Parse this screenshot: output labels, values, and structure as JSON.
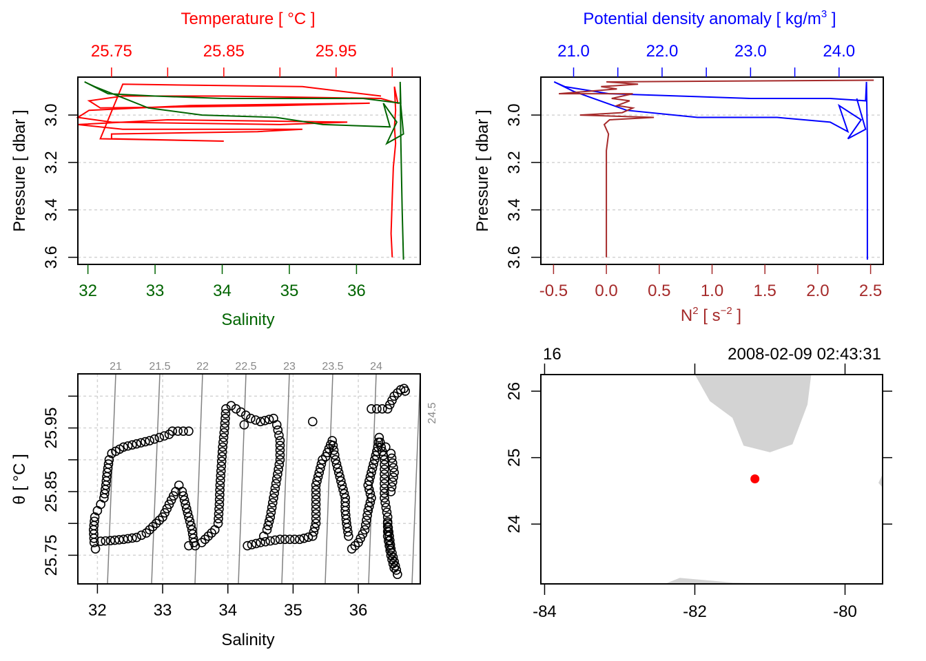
{
  "colors": {
    "temperature": "#ff0000",
    "salinity": "#006400",
    "density": "#0000ff",
    "n2": "#a52a2a",
    "axis": "#000000",
    "grid": "#d3d3d3",
    "isopycnal": "#808080",
    "land": "#d3d3d3",
    "station": "#ff0000"
  },
  "chart_data": [
    {
      "id": "profile-ST",
      "type": "line",
      "title": "Temperature [ °C ]",
      "top_axis": {
        "label": "Temperature [ °C ]",
        "range": [
          25.72,
          26.025
        ],
        "ticks": [
          25.75,
          25.8,
          25.85,
          25.9,
          25.95,
          26.0
        ],
        "tick_labels": [
          "25.75",
          "25.85",
          "25.95"
        ]
      },
      "bottom_axis": {
        "label": "Salinity",
        "range": [
          31.85,
          36.95
        ],
        "ticks": [
          32,
          33,
          34,
          35,
          36
        ],
        "tick_labels": [
          "32",
          "33",
          "34",
          "35",
          "36"
        ]
      },
      "y_axis": {
        "label": "Pressure [ dbar ]",
        "range": [
          3.63,
          2.84
        ],
        "ticks": [
          3.0,
          3.2,
          3.4,
          3.6
        ],
        "tick_labels": [
          "3.0",
          "3.2",
          "3.4",
          "3.6"
        ],
        "reversed": true
      },
      "grid": "horizontal-dashed",
      "series": [
        {
          "name": "Temperature",
          "axis": "top",
          "color": "#ff0000",
          "points": [
            [
              26.0,
              3.6
            ],
            [
              25.999,
              3.5
            ],
            [
              26.0,
              3.35
            ],
            [
              26.001,
              3.22
            ],
            [
              26.003,
              3.12
            ],
            [
              26.002,
              3.05
            ],
            [
              26.003,
              2.98
            ],
            [
              26.002,
              2.88
            ],
            [
              26.005,
              2.95
            ],
            [
              25.99,
              2.93
            ],
            [
              25.85,
              2.92
            ],
            [
              25.76,
              2.92
            ],
            [
              25.73,
              2.94
            ],
            [
              25.74,
              2.97
            ],
            [
              25.9,
              2.96
            ],
            [
              25.98,
              2.95
            ],
            [
              25.82,
              2.96
            ],
            [
              25.73,
              2.98
            ],
            [
              25.72,
              3.01
            ],
            [
              25.75,
              3.03
            ],
            [
              25.9,
              3.04
            ],
            [
              25.96,
              3.03
            ],
            [
              25.8,
              3.02
            ],
            [
              25.72,
              3.04
            ],
            [
              25.76,
              3.06
            ],
            [
              25.92,
              3.06
            ],
            [
              25.88,
              3.07
            ],
            [
              25.75,
              3.08
            ],
            [
              25.75,
              3.1
            ],
            [
              25.85,
              3.11
            ],
            [
              25.74,
              3.1
            ],
            [
              25.76,
              2.87
            ],
            [
              25.92,
              2.88
            ],
            [
              25.99,
              2.92
            ]
          ]
        },
        {
          "name": "Salinity",
          "axis": "bottom",
          "color": "#006400",
          "points": [
            [
              36.7,
              3.61
            ],
            [
              36.68,
              3.4
            ],
            [
              36.66,
              3.1
            ],
            [
              36.65,
              2.86
            ],
            [
              36.66,
              2.95
            ],
            [
              36.1,
              2.93
            ],
            [
              35.5,
              2.93
            ],
            [
              34.0,
              2.93
            ],
            [
              33.0,
              2.92
            ],
            [
              32.3,
              2.91
            ],
            [
              31.95,
              2.86
            ],
            [
              32.1,
              2.88
            ],
            [
              32.9,
              2.97
            ],
            [
              33.7,
              3.0
            ],
            [
              34.8,
              3.01
            ],
            [
              35.5,
              3.04
            ],
            [
              36.5,
              3.05
            ],
            [
              36.4,
              2.95
            ],
            [
              36.6,
              3.03
            ],
            [
              36.45,
              3.12
            ],
            [
              36.7,
              3.08
            ],
            [
              36.65,
              2.93
            ]
          ]
        }
      ]
    },
    {
      "id": "profile-density-N2",
      "type": "line",
      "top_axis": {
        "label": "Potential density anomaly [ kg/m3 ]",
        "range": [
          20.63,
          24.5
        ],
        "ticks": [
          21.0,
          21.5,
          22.0,
          22.5,
          23.0,
          23.5,
          24.0
        ],
        "tick_labels": [
          "21.0",
          "22.0",
          "23.0",
          "24.0"
        ]
      },
      "bottom_axis": {
        "label": "N2 [ s-2 ]",
        "range": [
          -0.62,
          2.62
        ],
        "ticks": [
          -0.5,
          0.0,
          0.5,
          1.0,
          1.5,
          2.0,
          2.5
        ],
        "tick_labels": [
          "-0.5",
          "0.0",
          "0.5",
          "1.0",
          "1.5",
          "2.0",
          "2.5"
        ]
      },
      "y_axis": {
        "label": "Pressure [ dbar ]",
        "range": [
          3.63,
          2.84
        ],
        "ticks": [
          3.0,
          3.2,
          3.4,
          3.6
        ],
        "tick_labels": [
          "3.0",
          "3.2",
          "3.4",
          "3.6"
        ],
        "reversed": true
      },
      "grid": "horizontal-dashed",
      "series": [
        {
          "name": "Potential density anomaly",
          "axis": "top",
          "color": "#0000ff",
          "points": [
            [
              24.32,
              3.61
            ],
            [
              24.32,
              3.4
            ],
            [
              24.32,
              3.1
            ],
            [
              24.31,
              2.86
            ],
            [
              24.3,
              2.94
            ],
            [
              23.9,
              2.93
            ],
            [
              23.0,
              2.93
            ],
            [
              22.2,
              2.92
            ],
            [
              21.4,
              2.91
            ],
            [
              20.9,
              2.88
            ],
            [
              20.78,
              2.86
            ],
            [
              21.0,
              2.9
            ],
            [
              21.6,
              2.98
            ],
            [
              22.4,
              3.01
            ],
            [
              23.3,
              3.01
            ],
            [
              23.9,
              3.03
            ],
            [
              24.1,
              3.07
            ],
            [
              24.0,
              2.96
            ],
            [
              24.25,
              3.02
            ],
            [
              24.1,
              3.1
            ],
            [
              24.3,
              3.06
            ],
            [
              24.2,
              2.93
            ]
          ]
        },
        {
          "name": "N2",
          "axis": "bottom",
          "color": "#a52a2a",
          "points": [
            [
              0.0,
              3.6
            ],
            [
              0.0,
              3.4
            ],
            [
              0.0,
              3.15
            ],
            [
              0.02,
              3.08
            ],
            [
              -0.02,
              3.04
            ],
            [
              0.03,
              3.02
            ],
            [
              0.45,
              3.01
            ],
            [
              -0.25,
              3.0
            ],
            [
              0.15,
              2.99
            ],
            [
              0.25,
              2.97
            ],
            [
              0.1,
              2.96
            ],
            [
              0.22,
              2.94
            ],
            [
              0.05,
              2.93
            ],
            [
              0.25,
              2.91
            ],
            [
              -0.45,
              2.91
            ],
            [
              0.1,
              2.89
            ],
            [
              -0.05,
              2.88
            ],
            [
              0.3,
              2.87
            ],
            [
              0.0,
              2.86
            ],
            [
              2.53,
              2.853
            ]
          ]
        }
      ]
    },
    {
      "id": "TS-diagram",
      "type": "scatter",
      "x_axis": {
        "label": "Salinity",
        "range": [
          31.7,
          36.95
        ],
        "ticks": [
          32,
          33,
          34,
          35,
          36
        ],
        "tick_labels": [
          "32",
          "33",
          "34",
          "35",
          "36"
        ]
      },
      "y_axis": {
        "label": "θ [ °C ]",
        "range": [
          25.705,
          26.035
        ],
        "ticks": [
          25.75,
          25.8,
          25.85,
          25.9,
          25.95,
          26.0
        ],
        "tick_labels": [
          "25.75",
          "25.85",
          "25.95"
        ]
      },
      "grid": "dashed",
      "isopycnals": {
        "labels": [
          "21",
          "21.5",
          "22",
          "22.5",
          "23",
          "23.5",
          "24",
          "24.5"
        ],
        "values": [
          21.0,
          21.5,
          22.0,
          22.5,
          23.0,
          23.5,
          24.0,
          24.5
        ],
        "color": "#808080"
      },
      "points": [
        [
          31.97,
          25.76
        ],
        [
          31.95,
          25.77
        ],
        [
          31.94,
          25.79
        ],
        [
          31.96,
          25.81
        ],
        [
          32.0,
          25.82
        ],
        [
          32.05,
          25.83
        ],
        [
          32.1,
          25.84
        ],
        [
          32.13,
          25.86
        ],
        [
          32.15,
          25.88
        ],
        [
          32.18,
          25.9
        ],
        [
          32.22,
          25.91
        ],
        [
          32.4,
          25.92
        ],
        [
          32.8,
          25.93
        ],
        [
          33.1,
          25.94
        ],
        [
          33.15,
          25.945
        ],
        [
          33.4,
          25.945
        ],
        [
          32.05,
          25.772
        ],
        [
          32.2,
          25.773
        ],
        [
          32.4,
          25.775
        ],
        [
          32.6,
          25.778
        ],
        [
          32.75,
          25.785
        ],
        [
          32.9,
          25.8
        ],
        [
          33.0,
          25.81
        ],
        [
          33.1,
          25.83
        ],
        [
          33.2,
          25.85
        ],
        [
          33.25,
          25.86
        ],
        [
          33.3,
          25.85
        ],
        [
          33.35,
          25.83
        ],
        [
          33.4,
          25.81
        ],
        [
          33.45,
          25.79
        ],
        [
          33.48,
          25.77
        ],
        [
          33.4,
          25.765
        ],
        [
          33.5,
          25.765
        ],
        [
          33.6,
          25.77
        ],
        [
          33.7,
          25.78
        ],
        [
          33.8,
          25.79
        ],
        [
          33.85,
          25.8
        ],
        [
          33.87,
          25.83
        ],
        [
          33.88,
          25.86
        ],
        [
          33.9,
          25.89
        ],
        [
          33.92,
          25.92
        ],
        [
          33.95,
          25.95
        ],
        [
          33.97,
          25.98
        ],
        [
          34.05,
          25.985
        ],
        [
          34.2,
          25.975
        ],
        [
          34.35,
          25.965
        ],
        [
          34.5,
          25.96
        ],
        [
          34.7,
          25.965
        ],
        [
          34.75,
          25.955
        ],
        [
          34.8,
          25.93
        ],
        [
          34.8,
          25.9
        ],
        [
          34.75,
          25.87
        ],
        [
          34.7,
          25.84
        ],
        [
          34.65,
          25.81
        ],
        [
          34.6,
          25.79
        ],
        [
          34.55,
          25.78
        ],
        [
          34.25,
          25.955
        ],
        [
          34.3,
          25.765
        ],
        [
          34.5,
          25.77
        ],
        [
          34.8,
          25.775
        ],
        [
          35.1,
          25.775
        ],
        [
          35.3,
          25.78
        ],
        [
          35.35,
          25.8
        ],
        [
          35.35,
          25.83
        ],
        [
          35.35,
          25.86
        ],
        [
          35.4,
          25.88
        ],
        [
          35.45,
          25.9
        ],
        [
          35.5,
          25.905
        ],
        [
          35.6,
          25.93
        ],
        [
          35.65,
          25.9
        ],
        [
          35.7,
          25.88
        ],
        [
          35.75,
          25.86
        ],
        [
          35.8,
          25.84
        ],
        [
          35.8,
          25.82
        ],
        [
          35.82,
          25.8
        ],
        [
          35.85,
          25.78
        ],
        [
          35.3,
          25.96
        ],
        [
          35.9,
          25.76
        ],
        [
          36.0,
          25.77
        ],
        [
          36.1,
          25.79
        ],
        [
          36.15,
          25.82
        ],
        [
          36.2,
          25.84
        ],
        [
          36.15,
          25.86
        ],
        [
          36.2,
          25.88
        ],
        [
          36.25,
          25.9
        ],
        [
          36.3,
          25.92
        ],
        [
          36.32,
          25.935
        ],
        [
          36.35,
          25.92
        ],
        [
          36.4,
          25.9
        ],
        [
          36.4,
          25.87
        ],
        [
          36.4,
          25.84
        ],
        [
          36.45,
          25.81
        ],
        [
          36.45,
          25.78
        ],
        [
          36.5,
          25.75
        ],
        [
          36.55,
          25.73
        ],
        [
          36.6,
          25.72
        ],
        [
          36.5,
          25.76
        ],
        [
          36.45,
          25.8
        ],
        [
          36.5,
          25.85
        ],
        [
          36.55,
          25.88
        ],
        [
          36.5,
          25.91
        ],
        [
          36.42,
          25.92
        ],
        [
          36.2,
          25.98
        ],
        [
          36.45,
          25.98
        ],
        [
          36.55,
          26.0
        ],
        [
          36.6,
          26.005
        ],
        [
          36.65,
          26.01
        ],
        [
          36.7,
          26.012
        ],
        [
          36.72,
          26.008
        ]
      ]
    },
    {
      "id": "station-map",
      "type": "scatter",
      "x_axis": {
        "label": "",
        "range": [
          -84.05,
          -79.5
        ],
        "ticks": [
          -84,
          -82,
          -80
        ],
        "tick_labels": [
          "-84",
          "-82",
          "-80"
        ]
      },
      "y_axis": {
        "label": "",
        "range": [
          23.1,
          26.25
        ],
        "ticks": [
          24,
          25,
          26
        ],
        "tick_labels": [
          "24",
          "25",
          "26"
        ]
      },
      "top_labels": {
        "station": "16",
        "time": "2008-02-09 02:43:31"
      },
      "station": {
        "lon": -81.2,
        "lat": 24.68
      },
      "land": [
        {
          "name": "florida",
          "polygon": [
            [
              -82.0,
              26.25
            ],
            [
              -81.8,
              25.85
            ],
            [
              -81.5,
              25.6
            ],
            [
              -81.35,
              25.18
            ],
            [
              -81.0,
              25.08
            ],
            [
              -80.7,
              25.2
            ],
            [
              -80.5,
              25.8
            ],
            [
              -80.45,
              26.25
            ]
          ]
        },
        {
          "name": "cuba",
          "polygon": [
            [
              -82.4,
              23.1
            ],
            [
              -82.2,
              23.19
            ],
            [
              -81.5,
              23.12
            ],
            [
              -80.6,
              23.1
            ]
          ]
        }
      ]
    }
  ]
}
